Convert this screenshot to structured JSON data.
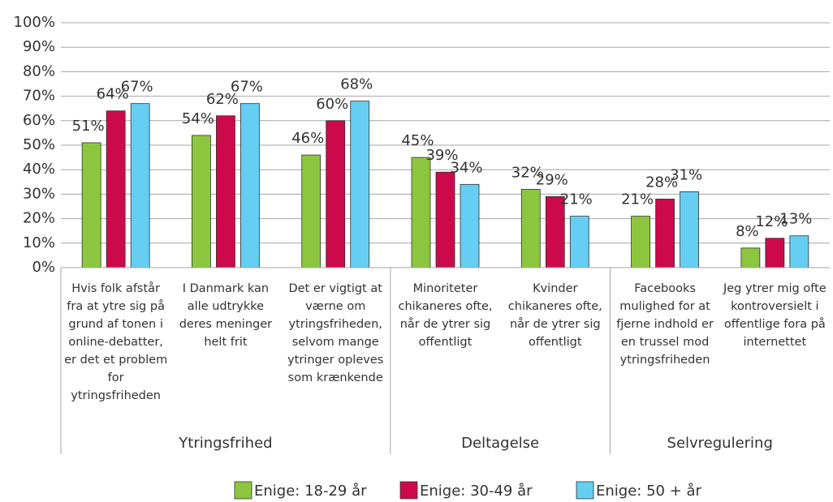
{
  "chart_data": {
    "type": "bar",
    "category_groups": [
      {
        "name": "Ytringsfrihed",
        "categories": [
          "Hvis folk afstår fra at ytre sig på grund af tonen i online-debatter, er det et problem for ytringsfriheden",
          "I Danmark kan alle udtrykke deres meninger helt frit",
          "Det er vigtigt at værne om ytringsfriheden, selvom mange ytringer opleves som krænkende"
        ]
      },
      {
        "name": "Deltagelse",
        "categories": [
          "Minoriteter chikaneres ofte, når de ytrer sig offentligt",
          "Kvinder chikaneres ofte, når de ytrer sig offentligt"
        ]
      },
      {
        "name": "Selvregulering",
        "categories": [
          "Facebooks mulighed for at fjerne indhold er en trussel mod ytringsfriheden",
          "Jeg ytrer mig ofte kontroversielt i offentlige fora på internettet"
        ]
      }
    ],
    "series": [
      {
        "name": "Enige: 18-29 år",
        "color": "#8cc63e",
        "values": [
          51,
          54,
          46,
          45,
          32,
          21,
          8
        ],
        "value_labels": [
          "51%",
          "54%",
          "46%",
          "45%",
          "32%",
          "21%",
          "8%"
        ]
      },
      {
        "name": "Enige: 30-49 år",
        "color": "#cc0a4b",
        "values": [
          64,
          62,
          60,
          39,
          29,
          28,
          12
        ],
        "value_labels": [
          "64%",
          "62%",
          "60%",
          "39%",
          "29%",
          "28%",
          "12%"
        ]
      },
      {
        "name": "Enige: 50 + år",
        "color": "#66cdf3",
        "values": [
          67,
          67,
          68,
          34,
          21,
          31,
          13
        ],
        "value_labels": [
          "67%",
          "67%",
          "68%",
          "34%",
          "21%",
          "31%",
          "13%"
        ]
      }
    ],
    "ylim": [
      0,
      100
    ],
    "yticks": [
      {
        "value": 0,
        "label": "0%"
      },
      {
        "value": 10,
        "label": "10%"
      },
      {
        "value": 20,
        "label": "20%"
      },
      {
        "value": 30,
        "label": "30%"
      },
      {
        "value": 40,
        "label": "40%"
      },
      {
        "value": 50,
        "label": "50%"
      },
      {
        "value": 60,
        "label": "60%"
      },
      {
        "value": 70,
        "label": "70%"
      },
      {
        "value": 80,
        "label": "80%"
      },
      {
        "value": 90,
        "label": "90%"
      },
      {
        "value": 100,
        "label": "100%"
      }
    ],
    "grid": true,
    "legend": "bottom"
  }
}
